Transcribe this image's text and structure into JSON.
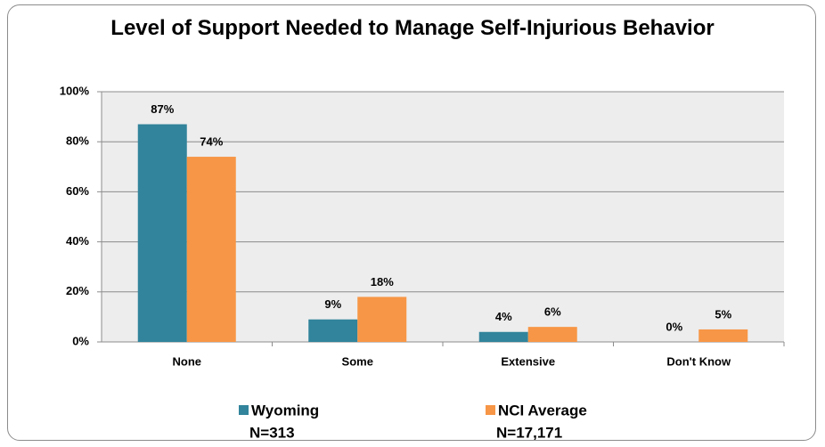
{
  "chart_data": {
    "type": "bar",
    "title": "Level of Support Needed to Manage Self-Injurious Behavior",
    "categories": [
      "None",
      "Some",
      "Extensive",
      "Don't Know"
    ],
    "series": [
      {
        "name": "Wyoming",
        "note": "N=313",
        "color": "#31849b",
        "values": [
          87,
          9,
          4,
          0
        ],
        "value_labels": [
          "87%",
          "9%",
          "4%",
          "0%"
        ]
      },
      {
        "name": "NCI Average",
        "note": "N=17,171",
        "color": "#f79646",
        "values": [
          74,
          18,
          6,
          5
        ],
        "value_labels": [
          "74%",
          "18%",
          "6%",
          "5%"
        ]
      }
    ],
    "ylim": [
      0,
      100
    ],
    "yticks": [
      {
        "value": 0,
        "label": "0%"
      },
      {
        "value": 20,
        "label": "20%"
      },
      {
        "value": 40,
        "label": "40%"
      },
      {
        "value": 60,
        "label": "60%"
      },
      {
        "value": 80,
        "label": "80%"
      },
      {
        "value": 100,
        "label": "100%"
      }
    ],
    "grid": true
  }
}
